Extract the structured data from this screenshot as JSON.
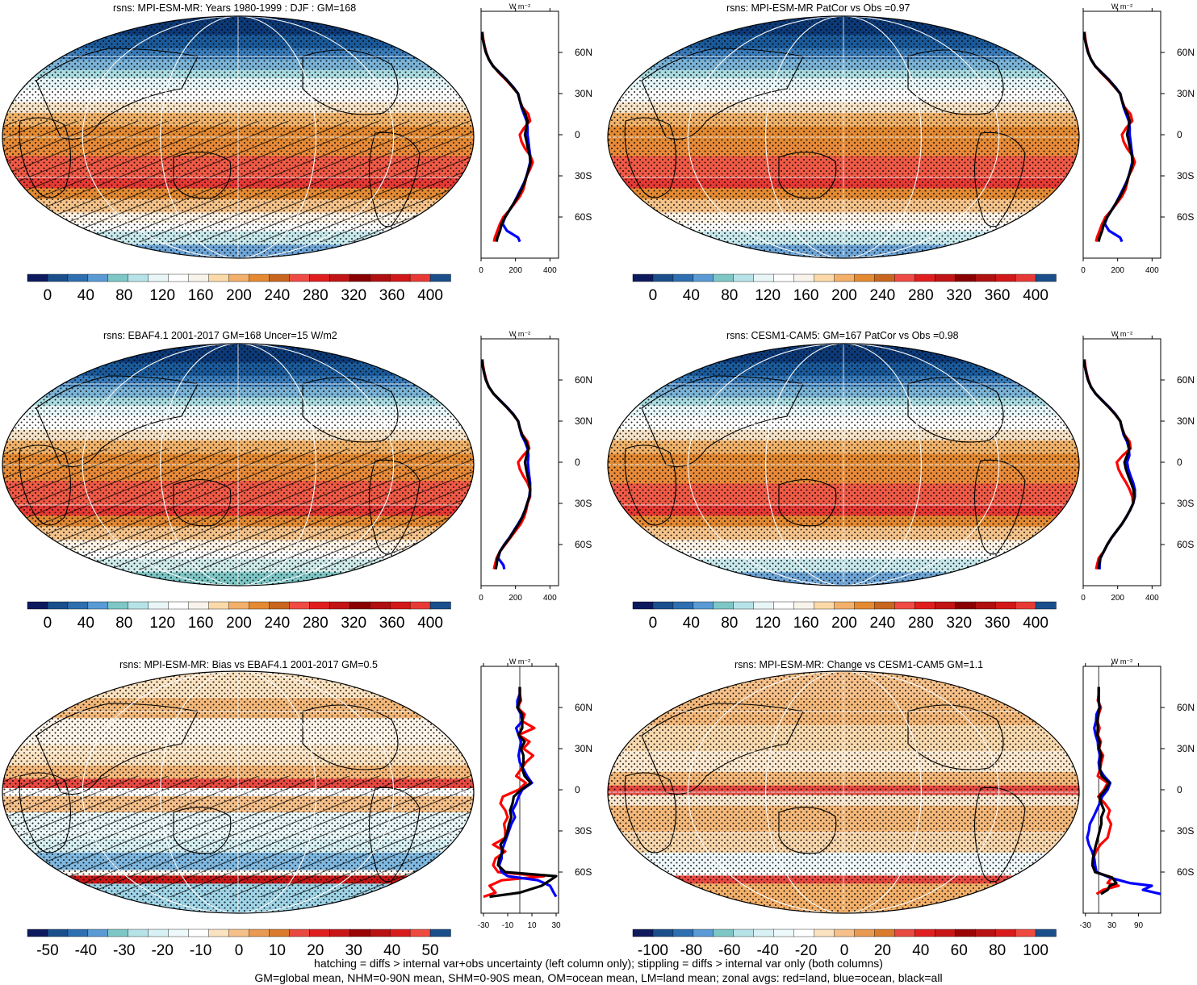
{
  "chart_data": [
    {
      "type": "heatmap",
      "title": "rsns: MPI-ESM-MR: Years 1980-1999 : DJF : GM=168",
      "colorbar": {
        "ticks": [
          "0",
          "40",
          "80",
          "120",
          "160",
          "200",
          "240",
          "280",
          "320",
          "360",
          "400"
        ]
      },
      "zonal_profile": {
        "unit_label": "W m⁻²",
        "xticks": [
          "0",
          "200",
          "400"
        ],
        "xlim": [
          0,
          450
        ],
        "lat": [
          75,
          70,
          65,
          60,
          55,
          50,
          45,
          40,
          35,
          30,
          25,
          20,
          15,
          10,
          5,
          0,
          -5,
          -10,
          -15,
          -20,
          -25,
          -30,
          -35,
          -40,
          -45,
          -50,
          -55,
          -60,
          -65,
          -70,
          -75,
          -78
        ],
        "series": [
          {
            "color": "red",
            "values": [
              8,
              12,
              20,
              30,
              45,
              70,
              105,
              145,
              180,
              215,
              225,
              240,
              275,
              285,
              250,
              225,
              235,
              255,
              285,
              300,
              285,
              265,
              255,
              245,
              225,
              195,
              165,
              130,
              110,
              95,
              80,
              75
            ]
          },
          {
            "color": "blue",
            "values": [
              5,
              10,
              18,
              28,
              45,
              70,
              110,
              150,
              185,
              215,
              225,
              235,
              250,
              265,
              270,
              270,
              275,
              280,
              285,
              285,
              275,
              265,
              250,
              230,
              210,
              190,
              165,
              140,
              125,
              150,
              215,
              225
            ]
          },
          {
            "color": "black",
            "values": [
              5,
              10,
              18,
              28,
              45,
              70,
              108,
              148,
              183,
              214,
              225,
              238,
              258,
              270,
              262,
              255,
              265,
              272,
              282,
              288,
              278,
              265,
              252,
              235,
              214,
              190,
              165,
              140,
              120,
              110,
              95,
              90
            ]
          }
        ]
      }
    },
    {
      "type": "heatmap",
      "title": "rsns: MPI-ESM-MR PatCor vs Obs =0.97",
      "colorbar": {
        "ticks": [
          "0",
          "40",
          "80",
          "120",
          "160",
          "200",
          "240",
          "280",
          "320",
          "360",
          "400"
        ]
      },
      "zonal_profile": {
        "unit_label": "W m⁻²",
        "xticks": [
          "0",
          "200",
          "400"
        ],
        "xlim": [
          0,
          450
        ],
        "lat": [
          75,
          70,
          65,
          60,
          55,
          50,
          45,
          40,
          35,
          30,
          25,
          20,
          15,
          10,
          5,
          0,
          -5,
          -10,
          -15,
          -20,
          -25,
          -30,
          -35,
          -40,
          -45,
          -50,
          -55,
          -60,
          -65,
          -70,
          -75,
          -78
        ],
        "series": [
          {
            "color": "red",
            "values": [
              8,
              12,
              20,
              30,
              45,
              70,
              105,
              145,
              180,
              215,
              225,
              240,
              275,
              285,
              250,
              225,
              235,
              255,
              285,
              300,
              285,
              265,
              255,
              245,
              225,
              195,
              165,
              130,
              110,
              95,
              80,
              75
            ]
          },
          {
            "color": "blue",
            "values": [
              5,
              10,
              18,
              28,
              45,
              70,
              110,
              150,
              185,
              215,
              225,
              235,
              250,
              265,
              270,
              270,
              275,
              280,
              285,
              285,
              275,
              265,
              250,
              230,
              210,
              190,
              165,
              140,
              125,
              150,
              215,
              225
            ]
          },
          {
            "color": "black",
            "values": [
              5,
              10,
              18,
              28,
              45,
              70,
              108,
              148,
              183,
              214,
              225,
              238,
              258,
              270,
              262,
              255,
              265,
              272,
              282,
              288,
              278,
              265,
              252,
              235,
              214,
              190,
              165,
              140,
              120,
              110,
              95,
              90
            ]
          }
        ]
      }
    },
    {
      "type": "heatmap",
      "title": "rsns: EBAF4.1 2001-2017 GM=168 Uncer=15 W/m2",
      "colorbar": {
        "ticks": [
          "0",
          "40",
          "80",
          "120",
          "160",
          "200",
          "240",
          "280",
          "320",
          "360",
          "400"
        ]
      },
      "zonal_profile": {
        "unit_label": "W m⁻²",
        "xticks": [
          "0",
          "200",
          "400"
        ],
        "xlim": [
          0,
          450
        ],
        "lat": [
          75,
          70,
          65,
          60,
          55,
          50,
          45,
          40,
          35,
          30,
          25,
          20,
          15,
          10,
          5,
          0,
          -5,
          -10,
          -15,
          -20,
          -25,
          -30,
          -35,
          -40,
          -45,
          -50,
          -55,
          -60,
          -65,
          -70,
          -75,
          -78
        ],
        "series": [
          {
            "color": "red",
            "values": [
              8,
              12,
              20,
              30,
              45,
              72,
              110,
              150,
              185,
              215,
              225,
              240,
              270,
              280,
              245,
              215,
              225,
              245,
              270,
              285,
              285,
              270,
              262,
              250,
              230,
              200,
              170,
              140,
              110,
              90,
              80,
              75
            ]
          },
          {
            "color": "blue",
            "values": [
              5,
              10,
              18,
              28,
              45,
              72,
              112,
              152,
              188,
              215,
              225,
              235,
              255,
              270,
              275,
              272,
              275,
              280,
              285,
              285,
              280,
              268,
              255,
              238,
              215,
              190,
              165,
              135,
              110,
              100,
              130,
              135
            ]
          },
          {
            "color": "black",
            "values": [
              5,
              10,
              18,
              28,
              45,
              72,
              110,
              150,
              186,
              215,
              225,
              238,
              262,
              275,
              265,
              255,
              262,
              270,
              280,
              285,
              282,
              268,
              256,
              240,
              218,
              192,
              167,
              137,
              110,
              95,
              90,
              85
            ]
          }
        ]
      }
    },
    {
      "type": "heatmap",
      "title": "rsns: CESM1-CAM5: GM=167 PatCor vs Obs =0.98",
      "colorbar": {
        "ticks": [
          "0",
          "40",
          "80",
          "120",
          "160",
          "200",
          "240",
          "280",
          "320",
          "360",
          "400"
        ]
      },
      "zonal_profile": {
        "unit_label": "W m⁻²",
        "xticks": [
          "0",
          "200",
          "400"
        ],
        "xlim": [
          0,
          450
        ],
        "lat": [
          75,
          70,
          65,
          60,
          55,
          50,
          45,
          40,
          35,
          30,
          25,
          20,
          15,
          10,
          5,
          0,
          -5,
          -10,
          -15,
          -20,
          -25,
          -30,
          -35,
          -40,
          -45,
          -50,
          -55,
          -60,
          -65,
          -70,
          -75,
          -78
        ],
        "series": [
          {
            "color": "red",
            "values": [
              8,
              12,
              20,
              30,
              45,
              72,
              110,
              150,
              185,
              215,
              225,
              240,
              270,
              275,
              230,
              195,
              205,
              225,
              250,
              270,
              285,
              290,
              272,
              250,
              225,
              195,
              165,
              140,
              120,
              90,
              80,
              75
            ]
          },
          {
            "color": "blue",
            "values": [
              5,
              10,
              18,
              28,
              45,
              72,
              112,
              152,
              188,
              215,
              225,
              235,
              255,
              265,
              268,
              255,
              262,
              275,
              290,
              300,
              300,
              290,
              272,
              250,
              225,
              195,
              165,
              140,
              120,
              100,
              95,
              95
            ]
          },
          {
            "color": "black",
            "values": [
              5,
              10,
              18,
              28,
              45,
              72,
              110,
              150,
              186,
              215,
              225,
              238,
              260,
              268,
              255,
              240,
              248,
              262,
              278,
              292,
              296,
              290,
              272,
              250,
              225,
              195,
              165,
              140,
              120,
              98,
              92,
              90
            ]
          }
        ]
      }
    },
    {
      "type": "heatmap",
      "title": "rsns: MPI-ESM-MR: Bias vs EBAF4.1 2001-2017 GM=0.5",
      "colorbar": {
        "ticks": [
          "-50",
          "-40",
          "-30",
          "-20",
          "-10",
          "0",
          "10",
          "20",
          "30",
          "40",
          "50"
        ]
      },
      "zonal_profile": {
        "unit_label": "W m⁻²",
        "xticks": [
          "-30",
          "-10",
          "10",
          "30"
        ],
        "xlim": [
          -32,
          32
        ],
        "lat": [
          75,
          70,
          65,
          60,
          55,
          50,
          45,
          40,
          35,
          30,
          25,
          20,
          15,
          10,
          5,
          0,
          -5,
          -10,
          -15,
          -20,
          -25,
          -30,
          -35,
          -40,
          -45,
          -50,
          -55,
          -60,
          -63,
          -66,
          -70,
          -75,
          -78
        ],
        "series": [
          {
            "color": "red",
            "values": [
              0,
              0,
              1,
              -2,
              4,
              2,
              12,
              -1,
              8,
              3,
              11,
              5,
              1,
              -3,
              5,
              -1,
              -14,
              -16,
              -12,
              -10,
              -13,
              -12,
              -12,
              -22,
              -12,
              -20,
              -22,
              -18,
              20,
              -15,
              -25,
              -20,
              -30
            ]
          },
          {
            "color": "blue",
            "values": [
              0,
              0,
              -2,
              -2,
              1,
              2,
              -3,
              -1,
              1,
              0,
              -1,
              0,
              3,
              6,
              10,
              2,
              -1,
              -3,
              -6,
              -4,
              -7,
              -9,
              -11,
              -13,
              -15,
              -15,
              -17,
              -15,
              -10,
              15,
              25,
              28,
              30
            ]
          },
          {
            "color": "black",
            "values": [
              0,
              0,
              0,
              -2,
              2,
              2,
              2,
              -1,
              4,
              1,
              3,
              3,
              2,
              4,
              9,
              1,
              -5,
              -6,
              -8,
              -7,
              -9,
              -10,
              -12,
              -16,
              -14,
              -17,
              -18,
              -12,
              30,
              25,
              18,
              0,
              -25
            ]
          }
        ]
      }
    },
    {
      "type": "heatmap",
      "title": "rsns: MPI-ESM-MR: Change vs CESM1-CAM5 GM=1.1",
      "colorbar": {
        "ticks": [
          "-100",
          "-80",
          "-60",
          "-40",
          "-20",
          "0",
          "20",
          "40",
          "60",
          "80",
          "100"
        ]
      },
      "zonal_profile": {
        "unit_label": "W m⁻²",
        "xticks": [
          "-30",
          "30",
          "90"
        ],
        "xlim": [
          -35,
          140
        ],
        "lat": [
          75,
          70,
          65,
          60,
          55,
          50,
          45,
          40,
          35,
          30,
          25,
          20,
          15,
          10,
          5,
          0,
          -5,
          -10,
          -15,
          -20,
          -25,
          -30,
          -35,
          -40,
          -45,
          -50,
          -55,
          -60,
          -64,
          -68,
          -70,
          -73,
          -76
        ],
        "series": [
          {
            "color": "red",
            "values": [
              0,
              0,
              -2,
              5,
              0,
              -3,
              2,
              -2,
              5,
              1,
              10,
              6,
              3,
              -2,
              20,
              12,
              -1,
              14,
              25,
              20,
              28,
              24,
              20,
              4,
              -6,
              -12,
              -14,
              -8,
              30,
              20,
              45,
              10,
              -5
            ]
          },
          {
            "color": "blue",
            "values": [
              0,
              0,
              0,
              2,
              -5,
              -6,
              -10,
              -7,
              -2,
              -1,
              3,
              0,
              2,
              12,
              26,
              20,
              8,
              2,
              -5,
              -12,
              -20,
              -22,
              -26,
              -22,
              -15,
              -10,
              -8,
              -5,
              25,
              70,
              120,
              100,
              140
            ]
          },
          {
            "color": "black",
            "values": [
              0,
              0,
              0,
              2,
              -1,
              -3,
              -2,
              -3,
              2,
              1,
              6,
              3,
              3,
              7,
              24,
              15,
              2,
              6,
              12,
              6,
              6,
              2,
              -2,
              -6,
              -10,
              -13,
              -14,
              -8,
              30,
              40,
              25,
              20,
              5
            ]
          }
        ]
      }
    }
  ],
  "footer": {
    "line1": "hatching = diffs > internal var+obs uncertainty (left column only); stippling = diffs > internal var only (both columns)",
    "line2": "GM=global mean, NHM=0-90N mean, SHM=0-90S mean, OM=ocean mean, LM=land mean; zonal avgs: red=land, blue=ocean, black=all"
  },
  "lat_ticks": [
    "60N",
    "30N",
    "0",
    "30S",
    "60S"
  ],
  "colors": {
    "abs_scale": [
      "#0d1a5e",
      "#1a4f8c",
      "#2d6fb0",
      "#5a9bd5",
      "#7fc7c7",
      "#b6e3e8",
      "#e8f6f8",
      "#ffffff",
      "#f8f4ec",
      "#fbd9a8",
      "#f2b06a",
      "#e38a33",
      "#c8661f",
      "#f04a45",
      "#e01e1e",
      "#c21414",
      "#8a0000",
      "#b01010",
      "#d21818",
      "#e83a35",
      "#1a4f8c"
    ],
    "diff_scale": [
      "#0d1a5e",
      "#1a4f8c",
      "#2d6fb0",
      "#5a9bd5",
      "#7fc7c7",
      "#b6e3e8",
      "#d8f1f4",
      "#eef9fb",
      "#ffffff",
      "#fbe2c0",
      "#f5c08a",
      "#e99a52",
      "#d97a2c",
      "#e84a42",
      "#e02020",
      "#c81616",
      "#9a0606",
      "#b81212",
      "#d81c1c",
      "#ee4a40",
      "#1a4f8c"
    ],
    "land": "red",
    "ocean": "blue",
    "all": "black"
  }
}
